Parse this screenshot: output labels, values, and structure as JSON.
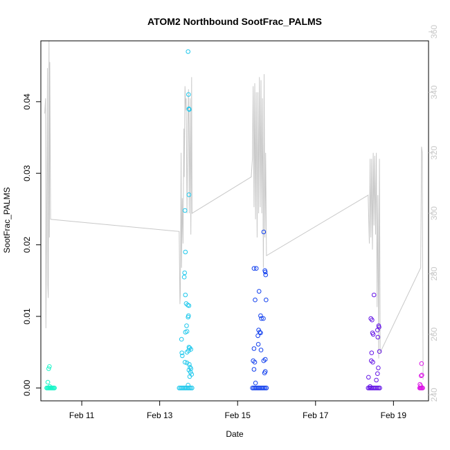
{
  "chart_data": {
    "type": "scatter",
    "title": "ATOM2 Northbound SootFrac_PALMS",
    "xlabel": "Date",
    "ylabel": "SootFrac_PALMS",
    "xlim": [
      9.95,
      19.9
    ],
    "ylim": [
      -0.0018,
      0.0485
    ],
    "y2lim": [
      238,
      357
    ],
    "x_ticks": [
      {
        "value": 11,
        "label": "Feb 11"
      },
      {
        "value": 13,
        "label": "Feb 13"
      },
      {
        "value": 15,
        "label": "Feb 15"
      },
      {
        "value": 17,
        "label": "Feb 17"
      },
      {
        "value": 19,
        "label": "Feb 19"
      }
    ],
    "y_ticks": [
      {
        "value": 0.0,
        "label": "0.00"
      },
      {
        "value": 0.01,
        "label": "0.01"
      },
      {
        "value": 0.02,
        "label": "0.02"
      },
      {
        "value": 0.03,
        "label": "0.03"
      },
      {
        "value": 0.04,
        "label": "0.04"
      }
    ],
    "y2_ticks": [
      {
        "value": 240,
        "label": "240"
      },
      {
        "value": 260,
        "label": "260"
      },
      {
        "value": 280,
        "label": "280"
      },
      {
        "value": 300,
        "label": "300"
      },
      {
        "value": 320,
        "label": "320"
      },
      {
        "value": 340,
        "label": "340"
      },
      {
        "value": 360,
        "label": "360"
      }
    ],
    "series": [
      {
        "color": "#19f5c8",
        "points": [
          [
            10.15,
            0.0027
          ],
          [
            10.17,
            0.003
          ],
          [
            10.13,
            0.0008
          ],
          [
            10.18,
            0.0002
          ],
          [
            10.1,
            0
          ],
          [
            10.12,
            0
          ],
          [
            10.14,
            0
          ],
          [
            10.16,
            0
          ],
          [
            10.18,
            0
          ],
          [
            10.2,
            0
          ],
          [
            10.22,
            0
          ],
          [
            10.24,
            0
          ],
          [
            10.26,
            0
          ],
          [
            10.28,
            0
          ],
          [
            10.3,
            0
          ]
        ]
      },
      {
        "color": "#1ec8ec",
        "points": [
          [
            13.73,
            0.047
          ],
          [
            13.74,
            0.041
          ],
          [
            13.75,
            0.039
          ],
          [
            13.76,
            0.0389
          ],
          [
            13.75,
            0.027
          ],
          [
            13.65,
            0.0248
          ],
          [
            13.66,
            0.019
          ],
          [
            13.64,
            0.0161
          ],
          [
            13.63,
            0.0155
          ],
          [
            13.66,
            0.013
          ],
          [
            13.68,
            0.0118
          ],
          [
            13.72,
            0.0116
          ],
          [
            13.75,
            0.0115
          ],
          [
            13.74,
            0.0101
          ],
          [
            13.73,
            0.0099
          ],
          [
            13.69,
            0.0087
          ],
          [
            13.7,
            0.0079
          ],
          [
            13.66,
            0.0078
          ],
          [
            13.56,
            0.0068
          ],
          [
            13.75,
            0.0057
          ],
          [
            13.77,
            0.0056
          ],
          [
            13.74,
            0.0052
          ],
          [
            13.8,
            0.0054
          ],
          [
            13.7,
            0.005
          ],
          [
            13.57,
            0.0049
          ],
          [
            13.58,
            0.0045
          ],
          [
            13.65,
            0.0036
          ],
          [
            13.7,
            0.0035
          ],
          [
            13.76,
            0.0033
          ],
          [
            13.78,
            0.0029
          ],
          [
            13.8,
            0.0027
          ],
          [
            13.75,
            0.0025
          ],
          [
            13.79,
            0.0022
          ],
          [
            13.82,
            0.0019
          ],
          [
            13.77,
            0.0016
          ],
          [
            13.73,
            0.0004
          ],
          [
            13.5,
            0
          ],
          [
            13.53,
            0
          ],
          [
            13.56,
            0
          ],
          [
            13.59,
            0
          ],
          [
            13.62,
            0
          ],
          [
            13.65,
            0
          ],
          [
            13.68,
            0
          ],
          [
            13.71,
            0
          ],
          [
            13.74,
            0
          ],
          [
            13.77,
            0
          ],
          [
            13.8,
            0
          ],
          [
            13.83,
            0
          ]
        ]
      },
      {
        "color": "#1240ee",
        "points": [
          [
            15.67,
            0.0218
          ],
          [
            15.42,
            0.0167
          ],
          [
            15.48,
            0.0167
          ],
          [
            15.7,
            0.0164
          ],
          [
            15.71,
            0.0162
          ],
          [
            15.72,
            0.0158
          ],
          [
            15.55,
            0.0135
          ],
          [
            15.45,
            0.0123
          ],
          [
            15.73,
            0.0123
          ],
          [
            15.59,
            0.0101
          ],
          [
            15.61,
            0.0097
          ],
          [
            15.66,
            0.0097
          ],
          [
            15.54,
            0.0081
          ],
          [
            15.57,
            0.0078
          ],
          [
            15.59,
            0.0077
          ],
          [
            15.52,
            0.0073
          ],
          [
            15.53,
            0.0061
          ],
          [
            15.42,
            0.0055
          ],
          [
            15.6,
            0.0053
          ],
          [
            15.71,
            0.004
          ],
          [
            15.67,
            0.0038
          ],
          [
            15.4,
            0.0038
          ],
          [
            15.44,
            0.0036
          ],
          [
            15.42,
            0.0026
          ],
          [
            15.71,
            0.0023
          ],
          [
            15.69,
            0.0021
          ],
          [
            15.46,
            0.0007
          ],
          [
            15.38,
            0
          ],
          [
            15.41,
            0
          ],
          [
            15.44,
            0
          ],
          [
            15.47,
            0
          ],
          [
            15.5,
            0
          ],
          [
            15.53,
            0
          ],
          [
            15.56,
            0
          ],
          [
            15.59,
            0
          ],
          [
            15.62,
            0
          ],
          [
            15.65,
            0
          ],
          [
            15.68,
            0
          ],
          [
            15.71,
            0
          ],
          [
            15.74,
            0
          ]
        ]
      },
      {
        "color": "#6414e6",
        "points": [
          [
            18.5,
            0.013
          ],
          [
            18.42,
            0.0097
          ],
          [
            18.45,
            0.0095
          ],
          [
            18.62,
            0.0087
          ],
          [
            18.63,
            0.0085
          ],
          [
            18.59,
            0.0081
          ],
          [
            18.46,
            0.0077
          ],
          [
            18.48,
            0.0075
          ],
          [
            18.6,
            0.0071
          ],
          [
            18.44,
            0.0049
          ],
          [
            18.64,
            0.0051
          ],
          [
            18.43,
            0.0038
          ],
          [
            18.47,
            0.0036
          ],
          [
            18.61,
            0.0028
          ],
          [
            18.59,
            0.002
          ],
          [
            18.36,
            0.0015
          ],
          [
            18.56,
            0.0011
          ],
          [
            18.4,
            0.0002
          ],
          [
            18.35,
            0
          ],
          [
            18.38,
            0
          ],
          [
            18.41,
            0
          ],
          [
            18.44,
            0
          ],
          [
            18.47,
            0
          ],
          [
            18.5,
            0
          ],
          [
            18.53,
            0
          ],
          [
            18.56,
            0
          ],
          [
            18.59,
            0
          ],
          [
            18.62,
            0
          ],
          [
            18.65,
            0
          ]
        ]
      },
      {
        "color": "#dc14e6",
        "points": [
          [
            19.72,
            0.0034
          ],
          [
            19.73,
            0.0018
          ],
          [
            19.71,
            0.0017
          ],
          [
            19.68,
            0.0005
          ],
          [
            19.7,
            0.0003
          ],
          [
            19.67,
            0
          ],
          [
            19.69,
            0
          ],
          [
            19.71,
            0
          ],
          [
            19.73,
            0
          ],
          [
            19.75,
            0
          ]
        ]
      }
    ],
    "secondary_line": {
      "color": "#c8c8c8",
      "points": [
        [
          10.05,
          333
        ],
        [
          10.07,
          338
        ],
        [
          10.08,
          262
        ],
        [
          10.1,
          297
        ],
        [
          10.12,
          348
        ],
        [
          10.13,
          276
        ],
        [
          10.14,
          272
        ],
        [
          10.16,
          357
        ],
        [
          10.17,
          292
        ],
        [
          10.18,
          350
        ],
        [
          10.2,
          298
        ],
        [
          13.5,
          294
        ],
        [
          13.52,
          270
        ],
        [
          13.53,
          273
        ],
        [
          13.55,
          320
        ],
        [
          13.56,
          282
        ],
        [
          13.58,
          305
        ],
        [
          13.6,
          290
        ],
        [
          13.62,
          328
        ],
        [
          13.63,
          312
        ],
        [
          13.65,
          342
        ],
        [
          13.67,
          334
        ],
        [
          13.68,
          338
        ],
        [
          13.7,
          300
        ],
        [
          13.72,
          329
        ],
        [
          13.74,
          341
        ],
        [
          13.76,
          300
        ],
        [
          13.78,
          338
        ],
        [
          13.8,
          293
        ],
        [
          13.82,
          345
        ],
        [
          13.83,
          300
        ],
        [
          15.35,
          312
        ],
        [
          15.38,
          318
        ],
        [
          15.4,
          342
        ],
        [
          15.42,
          302
        ],
        [
          15.44,
          343
        ],
        [
          15.46,
          298
        ],
        [
          15.48,
          340
        ],
        [
          15.5,
          292
        ],
        [
          15.52,
          340
        ],
        [
          15.54,
          300
        ],
        [
          15.56,
          345
        ],
        [
          15.58,
          302
        ],
        [
          15.6,
          344
        ],
        [
          15.62,
          300
        ],
        [
          15.64,
          338
        ],
        [
          15.66,
          282
        ],
        [
          15.68,
          346
        ],
        [
          15.7,
          292
        ],
        [
          15.72,
          320
        ],
        [
          15.74,
          286
        ],
        [
          18.35,
          306
        ],
        [
          18.38,
          290
        ],
        [
          18.4,
          318
        ],
        [
          18.42,
          292
        ],
        [
          18.44,
          318
        ],
        [
          18.46,
          288
        ],
        [
          18.48,
          320
        ],
        [
          18.5,
          296
        ],
        [
          18.52,
          319
        ],
        [
          18.54,
          293
        ],
        [
          18.56,
          320
        ],
        [
          18.58,
          269
        ],
        [
          18.6,
          306
        ],
        [
          18.62,
          252
        ],
        [
          18.64,
          318
        ],
        [
          18.66,
          254
        ],
        [
          19.7,
          282
        ],
        [
          19.72,
          322
        ],
        [
          19.74,
          320
        ],
        [
          19.76,
          245
        ]
      ]
    }
  }
}
